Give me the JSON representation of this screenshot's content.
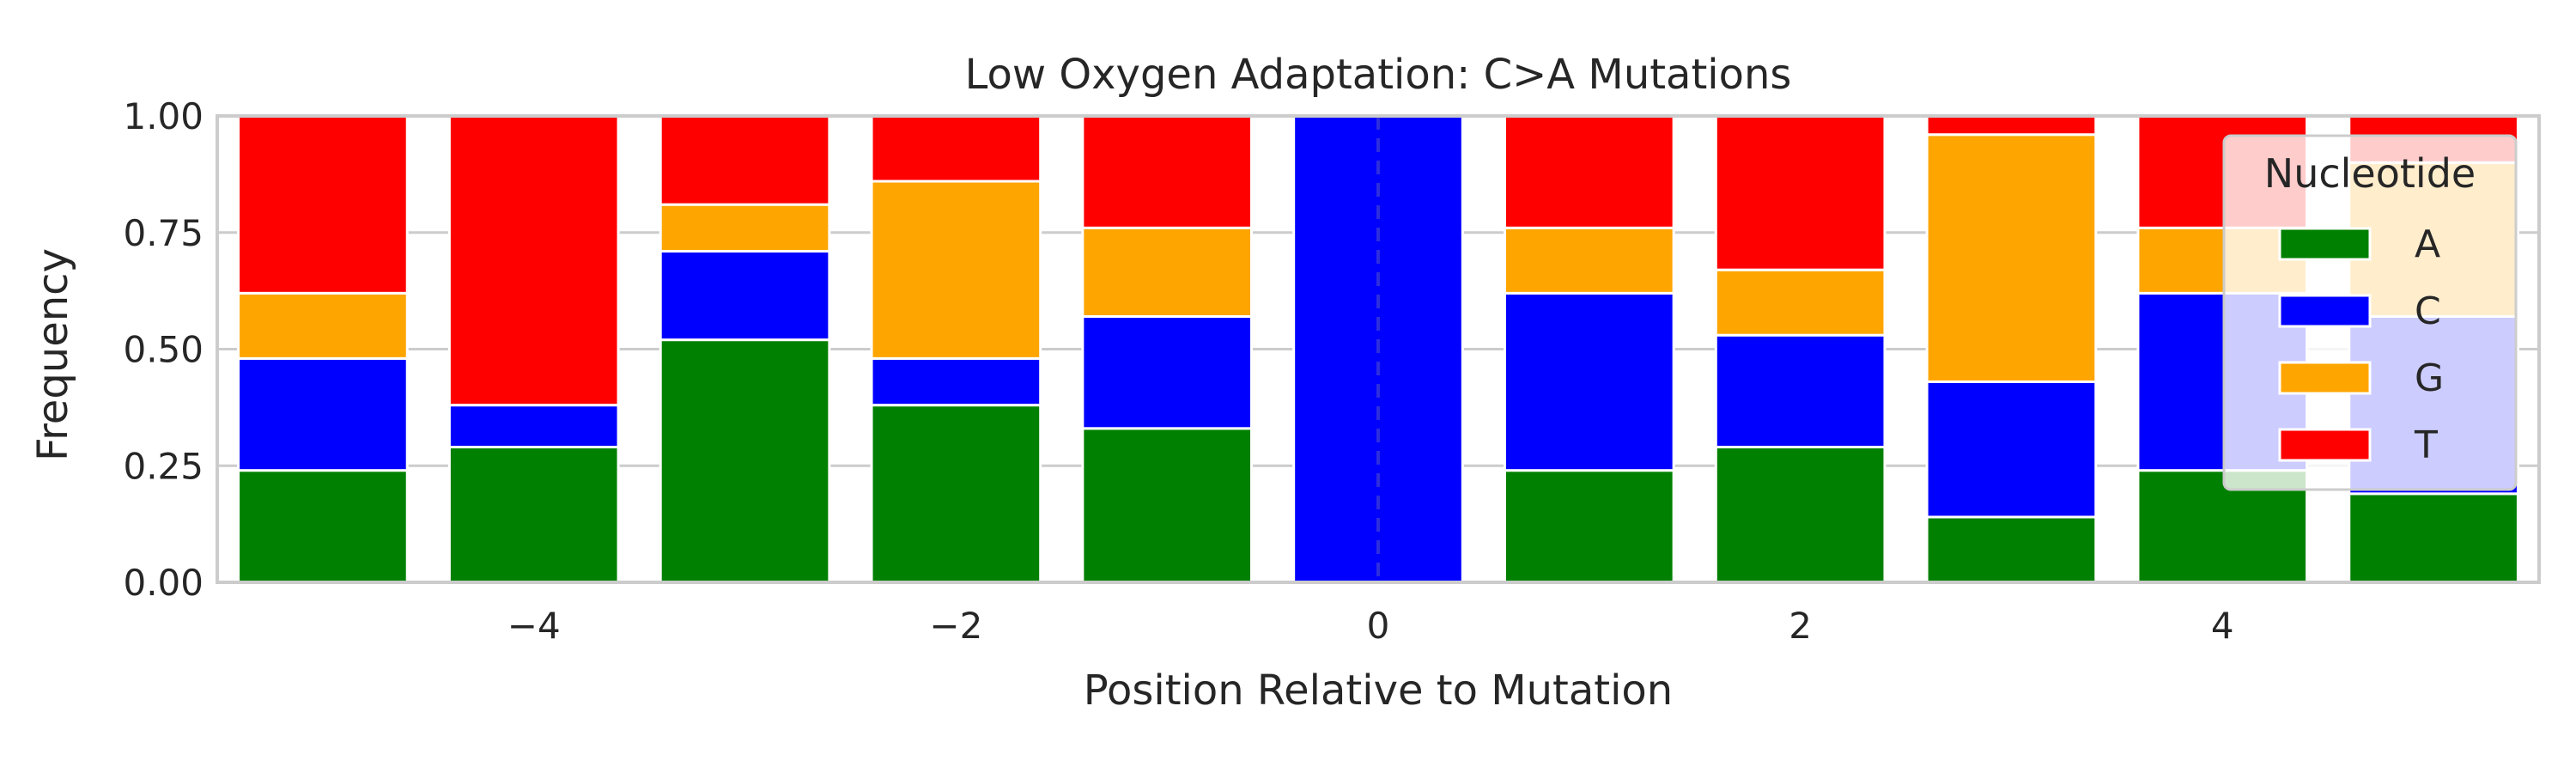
{
  "chart_data": {
    "type": "bar",
    "stacked": true,
    "title": "Low Oxygen Adaptation: C>A Mutations",
    "xlabel": "Position Relative to Mutation",
    "ylabel": "Frequency",
    "x": [
      -5,
      -4,
      -3,
      -2,
      -1,
      0,
      1,
      2,
      3,
      4,
      5
    ],
    "xlim": [
      -5.5,
      5.5
    ],
    "xticks": [
      "−4",
      "−2",
      "0",
      "2",
      "4"
    ],
    "xtick_values": [
      -4,
      -2,
      0,
      2,
      4
    ],
    "ylim": [
      0,
      1
    ],
    "yticks": [
      "0.00",
      "0.25",
      "0.50",
      "0.75",
      "1.00"
    ],
    "ytick_values": [
      0,
      0.25,
      0.5,
      0.75,
      1.0
    ],
    "grid": "horizontal",
    "reference_line": {
      "x": 0,
      "style": "dashed"
    },
    "legend": {
      "title": "Nucleotide",
      "position": "top-right"
    },
    "series": [
      {
        "name": "A",
        "color": "#008000",
        "values": [
          0.24,
          0.29,
          0.52,
          0.38,
          0.33,
          0.0,
          0.24,
          0.29,
          0.14,
          0.24,
          0.19
        ]
      },
      {
        "name": "C",
        "color": "#0000ff",
        "values": [
          0.24,
          0.09,
          0.19,
          0.1,
          0.24,
          1.0,
          0.38,
          0.24,
          0.29,
          0.38,
          0.38
        ]
      },
      {
        "name": "G",
        "color": "#ffa500",
        "values": [
          0.14,
          0.0,
          0.1,
          0.38,
          0.19,
          0.0,
          0.14,
          0.14,
          0.53,
          0.14,
          0.33
        ]
      },
      {
        "name": "T",
        "color": "#ff0000",
        "values": [
          0.38,
          0.62,
          0.19,
          0.14,
          0.24,
          0.0,
          0.24,
          0.33,
          0.04,
          0.24,
          0.1
        ]
      }
    ]
  }
}
